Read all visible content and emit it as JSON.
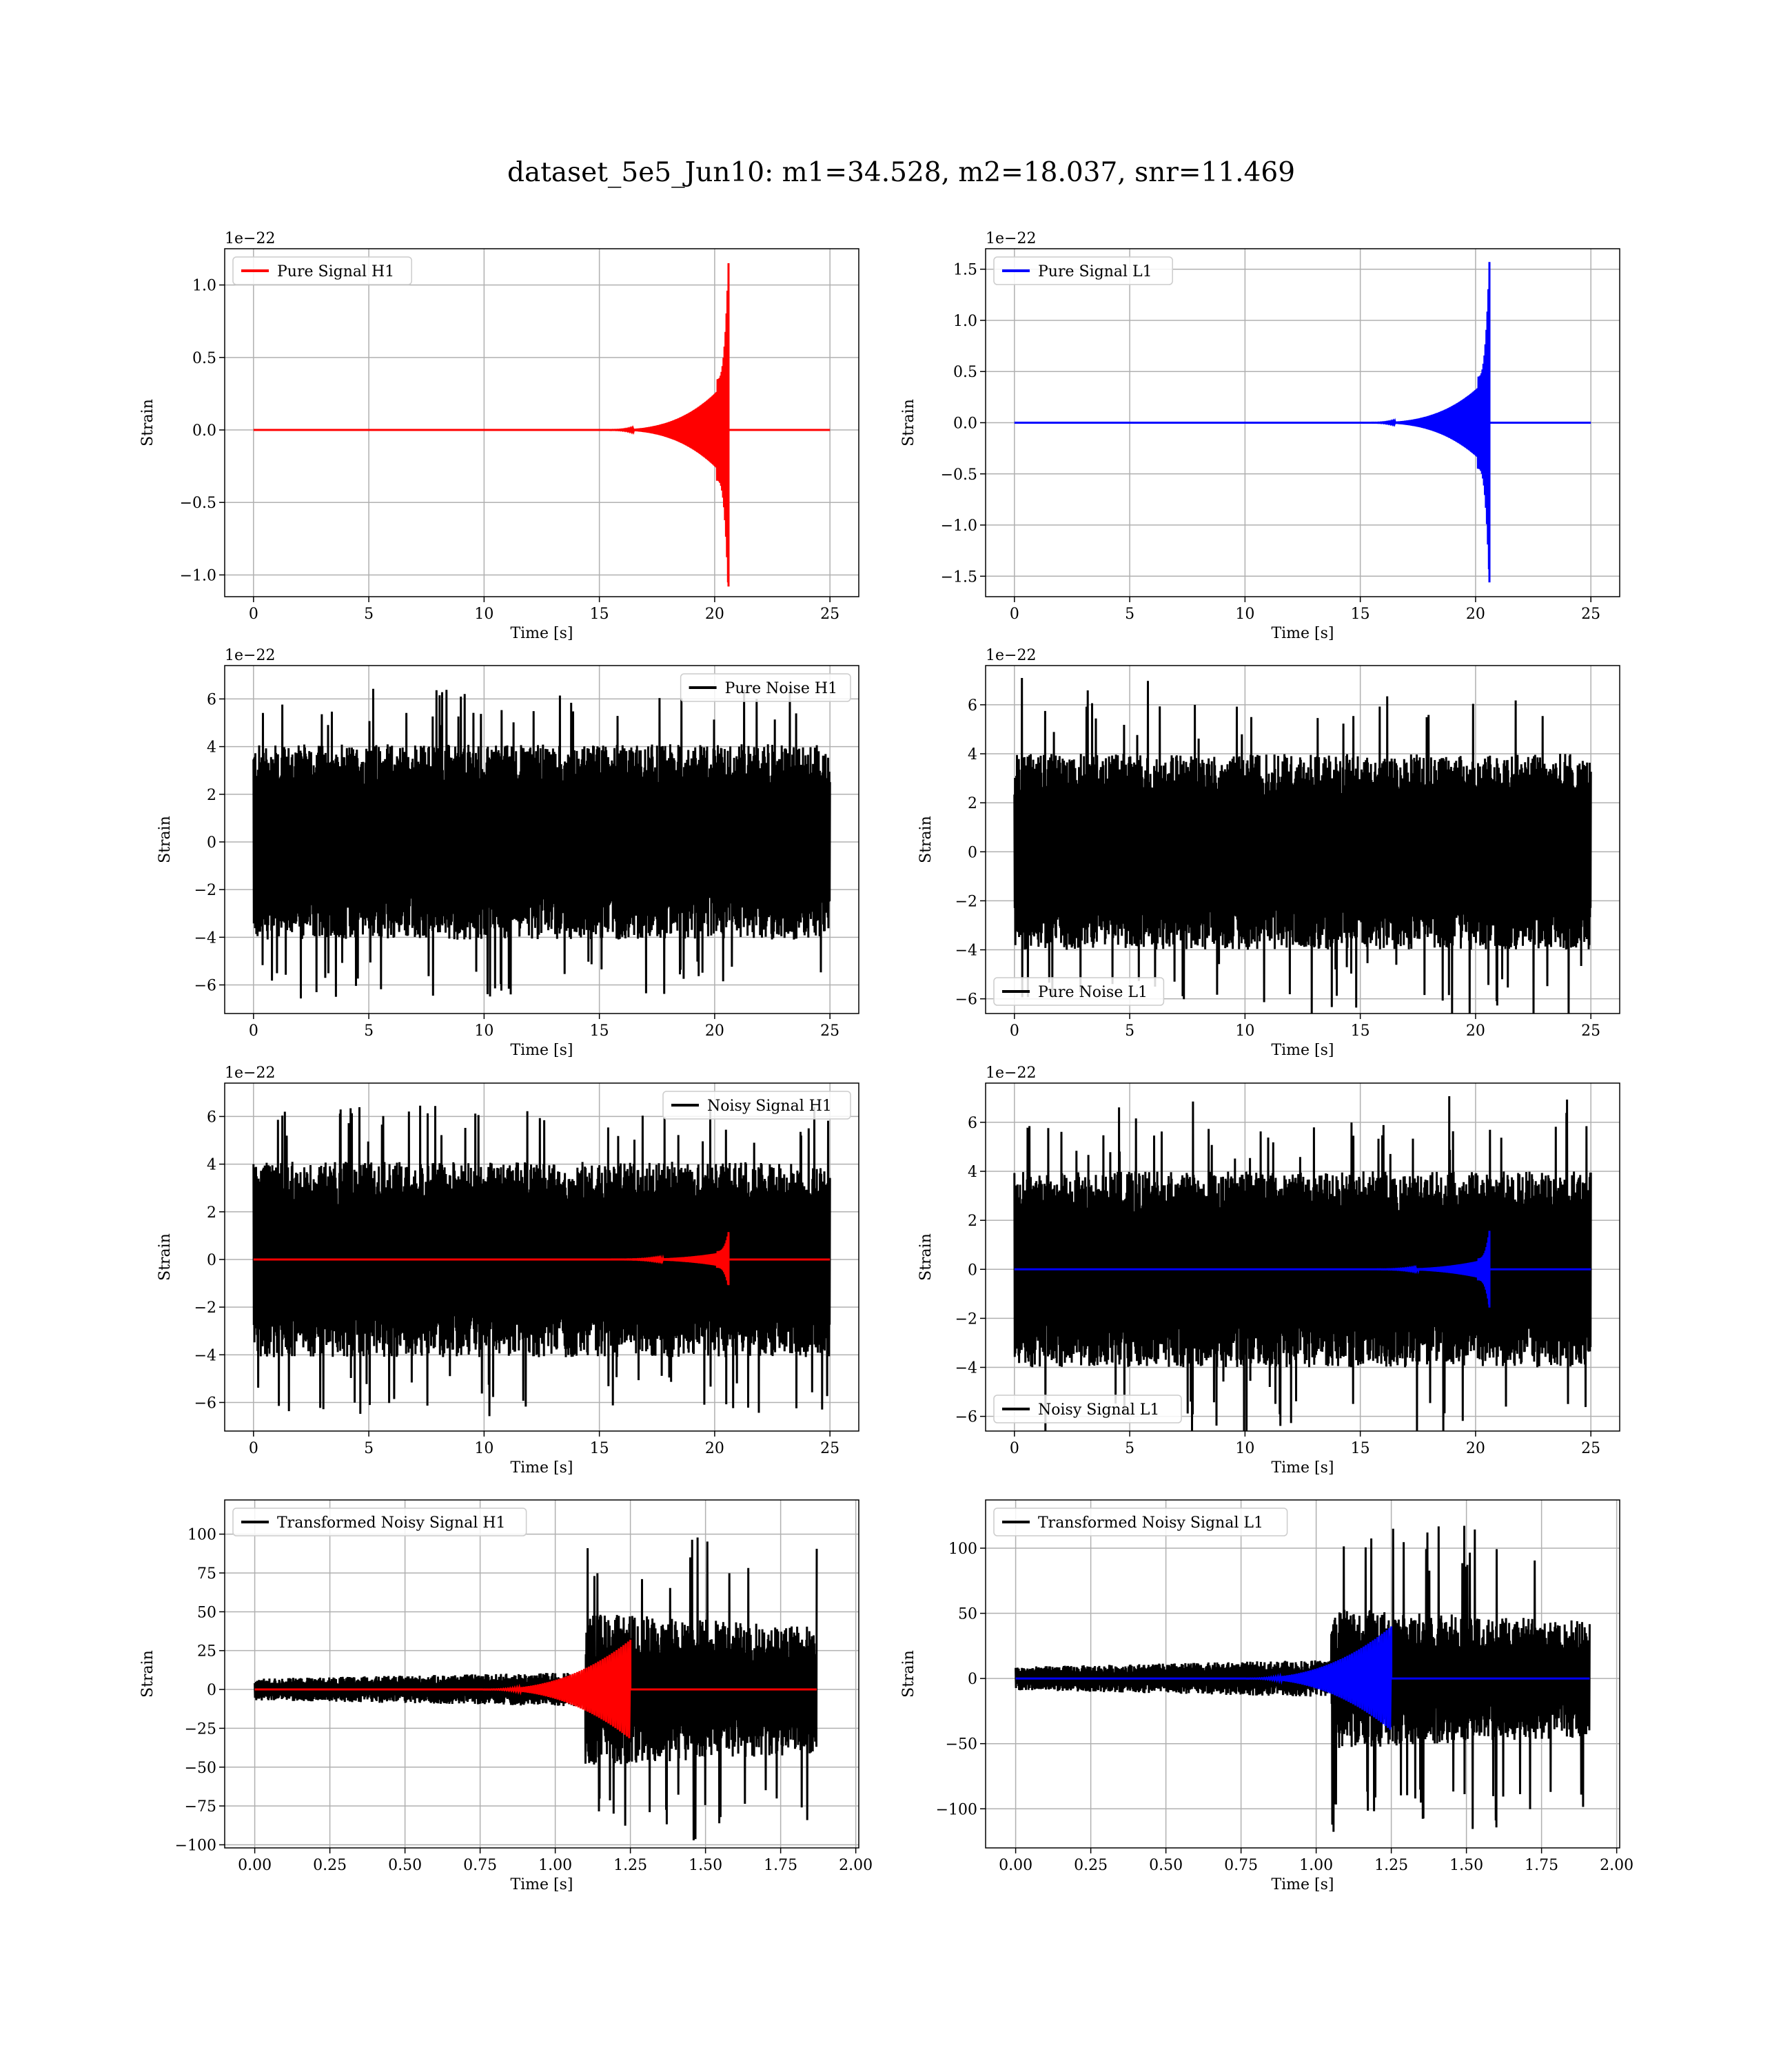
{
  "figure": {
    "title": "dataset_5e5_Jun10: m1=34.528, m2=18.037, snr=11.469"
  },
  "colors": {
    "h1_signal": "#ff0000",
    "l1_signal": "#0000ff",
    "noise": "#000000",
    "grid": "#b0b0b0"
  },
  "chart_data": [
    {
      "id": "pure-signal-h1",
      "type": "line",
      "xlabel": "Time [s]",
      "ylabel": "Strain",
      "offset_text": "1e−22",
      "xlim": [
        -1.25,
        26.25
      ],
      "ylim": [
        -1.15,
        1.25
      ],
      "xticks": [
        0,
        5,
        10,
        15,
        20,
        25
      ],
      "yticks": [
        -1.0,
        -0.5,
        0.0,
        0.5,
        1.0
      ],
      "ytick_labels": [
        "−1.0",
        "−0.5",
        "0.0",
        "0.5",
        "1.0"
      ],
      "legend": {
        "loc": "upper-left",
        "show": true
      },
      "series": [
        {
          "name": "Pure Signal H1",
          "color": "#ff0000",
          "kind": "chirp",
          "x_start": 0,
          "x_end": 25,
          "merger": 20.6,
          "peak_max": 1.15,
          "peak_min": -1.08,
          "envelope": 0.35,
          "onset": 15
        }
      ]
    },
    {
      "id": "pure-signal-l1",
      "type": "line",
      "xlabel": "Time [s]",
      "ylabel": "Strain",
      "offset_text": "1e−22",
      "xlim": [
        -1.25,
        26.25
      ],
      "ylim": [
        -1.7,
        1.7
      ],
      "xticks": [
        0,
        5,
        10,
        15,
        20,
        25
      ],
      "yticks": [
        -1.5,
        -1.0,
        -0.5,
        0.0,
        0.5,
        1.0,
        1.5
      ],
      "ytick_labels": [
        "−1.5",
        "−1.0",
        "−0.5",
        "0.0",
        "0.5",
        "1.0",
        "1.5"
      ],
      "legend": {
        "loc": "upper-left",
        "show": true
      },
      "series": [
        {
          "name": "Pure Signal L1",
          "color": "#0000ff",
          "kind": "chirp",
          "x_start": 0,
          "x_end": 25,
          "merger": 20.6,
          "peak_max": 1.57,
          "peak_min": -1.56,
          "envelope": 0.45,
          "onset": 15
        }
      ]
    },
    {
      "id": "pure-noise-h1",
      "type": "line",
      "xlabel": "Time [s]",
      "ylabel": "Strain",
      "offset_text": "1e−22",
      "xlim": [
        -1.25,
        26.25
      ],
      "ylim": [
        -7.2,
        7.4
      ],
      "xticks": [
        0,
        5,
        10,
        15,
        20,
        25
      ],
      "yticks": [
        -6,
        -4,
        -2,
        0,
        2,
        4,
        6
      ],
      "ytick_labels": [
        "−6",
        "−4",
        "−2",
        "0",
        "2",
        "4",
        "6"
      ],
      "legend": {
        "loc": "upper-right",
        "show": true
      },
      "series": [
        {
          "name": "Pure Noise H1",
          "color": "#000000",
          "kind": "noise",
          "x_start": 0,
          "x_end": 25,
          "band": 4.1,
          "spike_max": 6.6,
          "spike_min": -6.5
        }
      ]
    },
    {
      "id": "pure-noise-l1",
      "type": "line",
      "xlabel": "Time [s]",
      "ylabel": "Strain",
      "offset_text": "1e−22",
      "xlim": [
        -1.25,
        26.25
      ],
      "ylim": [
        -6.6,
        7.6
      ],
      "xticks": [
        0,
        5,
        10,
        15,
        20,
        25
      ],
      "yticks": [
        -6,
        -4,
        -2,
        0,
        2,
        4,
        6
      ],
      "ytick_labels": [
        "−6",
        "−4",
        "−2",
        "0",
        "2",
        "4",
        "6"
      ],
      "legend": {
        "loc": "lower-left",
        "show": true
      },
      "series": [
        {
          "name": "Pure Noise L1",
          "color": "#000000",
          "kind": "noise",
          "x_start": 0,
          "x_end": 25,
          "band": 4.0,
          "spike_max": 7.1,
          "spike_min": -6.0
        }
      ]
    },
    {
      "id": "noisy-signal-h1",
      "type": "line",
      "xlabel": "Time [s]",
      "ylabel": "Strain",
      "offset_text": "1e−22",
      "xlim": [
        -1.25,
        26.25
      ],
      "ylim": [
        -7.2,
        7.4
      ],
      "xticks": [
        0,
        5,
        10,
        15,
        20,
        25
      ],
      "yticks": [
        -6,
        -4,
        -2,
        0,
        2,
        4,
        6
      ],
      "ytick_labels": [
        "−6",
        "−4",
        "−2",
        "0",
        "2",
        "4",
        "6"
      ],
      "legend": {
        "loc": "upper-right",
        "show": true
      },
      "series": [
        {
          "name": "Noisy Signal H1",
          "color": "#000000",
          "kind": "noise",
          "x_start": 0,
          "x_end": 25,
          "band": 4.1,
          "spike_max": 6.6,
          "spike_min": -6.5
        },
        {
          "color": "#ff0000",
          "kind": "chirp",
          "x_start": 0,
          "x_end": 25,
          "merger": 20.6,
          "peak_max": 1.15,
          "peak_min": -1.08,
          "envelope": 0.35,
          "onset": 15
        }
      ]
    },
    {
      "id": "noisy-signal-l1",
      "type": "line",
      "xlabel": "Time [s]",
      "ylabel": "Strain",
      "offset_text": "1e−22",
      "xlim": [
        -1.25,
        26.25
      ],
      "ylim": [
        -6.6,
        7.6
      ],
      "xticks": [
        0,
        5,
        10,
        15,
        20,
        25
      ],
      "yticks": [
        -6,
        -4,
        -2,
        0,
        2,
        4,
        6
      ],
      "ytick_labels": [
        "−6",
        "−4",
        "−2",
        "0",
        "2",
        "4",
        "6"
      ],
      "legend": {
        "loc": "lower-left",
        "show": true
      },
      "series": [
        {
          "name": "Noisy Signal L1",
          "color": "#000000",
          "kind": "noise",
          "x_start": 0,
          "x_end": 25,
          "band": 4.0,
          "spike_max": 7.1,
          "spike_min": -6.0
        },
        {
          "color": "#0000ff",
          "kind": "chirp",
          "x_start": 0,
          "x_end": 25,
          "merger": 20.6,
          "peak_max": 1.57,
          "peak_min": -1.56,
          "envelope": 0.45,
          "onset": 15
        }
      ]
    },
    {
      "id": "transformed-noisy-signal-h1",
      "type": "line",
      "xlabel": "Time [s]",
      "ylabel": "Strain",
      "offset_text": "",
      "xlim": [
        -0.1,
        2.01
      ],
      "ylim": [
        -102,
        122
      ],
      "xticks": [
        0.0,
        0.25,
        0.5,
        0.75,
        1.0,
        1.25,
        1.5,
        1.75,
        2.0
      ],
      "xtick_labels": [
        "0.00",
        "0.25",
        "0.50",
        "0.75",
        "1.00",
        "1.25",
        "1.50",
        "1.75",
        "2.00"
      ],
      "yticks": [
        -100,
        -75,
        -50,
        -25,
        0,
        25,
        50,
        75,
        100
      ],
      "ytick_labels": [
        "−100",
        "−75",
        "−50",
        "−25",
        "0",
        "25",
        "50",
        "75",
        "100"
      ],
      "legend": {
        "loc": "upper-left",
        "show": true
      },
      "series": [
        {
          "name": "Transformed Noisy Signal H1",
          "color": "#000000",
          "kind": "tnoise",
          "x_start": 0,
          "x_end": 1.87,
          "rise": 1.1,
          "low": 7,
          "high": 55,
          "spike_max": 100,
          "spike_min": -92
        },
        {
          "color": "#ff0000",
          "kind": "tchirp",
          "x_start": 0,
          "x_end": 1.87,
          "merger": 1.25,
          "peak_max": 32,
          "peak_min": -30
        }
      ]
    },
    {
      "id": "transformed-noisy-signal-l1",
      "type": "line",
      "xlabel": "Time [s]",
      "ylabel": "Strain",
      "offset_text": "",
      "xlim": [
        -0.1,
        2.01
      ],
      "ylim": [
        -130,
        137
      ],
      "xticks": [
        0.0,
        0.25,
        0.5,
        0.75,
        1.0,
        1.25,
        1.5,
        1.75,
        2.0
      ],
      "xtick_labels": [
        "0.00",
        "0.25",
        "0.50",
        "0.75",
        "1.00",
        "1.25",
        "1.50",
        "1.75",
        "2.00"
      ],
      "yticks": [
        -100,
        -50,
        0,
        50,
        100
      ],
      "ytick_labels": [
        "−100",
        "−50",
        "0",
        "50",
        "100"
      ],
      "legend": {
        "loc": "upper-left",
        "show": true
      },
      "series": [
        {
          "name": "Transformed Noisy Signal L1",
          "color": "#000000",
          "kind": "tnoise",
          "x_start": 0,
          "x_end": 1.91,
          "rise": 1.05,
          "low": 9,
          "high": 60,
          "spike_max": 117,
          "spike_min": -118
        },
        {
          "color": "#0000ff",
          "kind": "tchirp",
          "x_start": 0,
          "x_end": 1.91,
          "merger": 1.25,
          "peak_max": 40,
          "peak_min": -40
        }
      ]
    }
  ]
}
